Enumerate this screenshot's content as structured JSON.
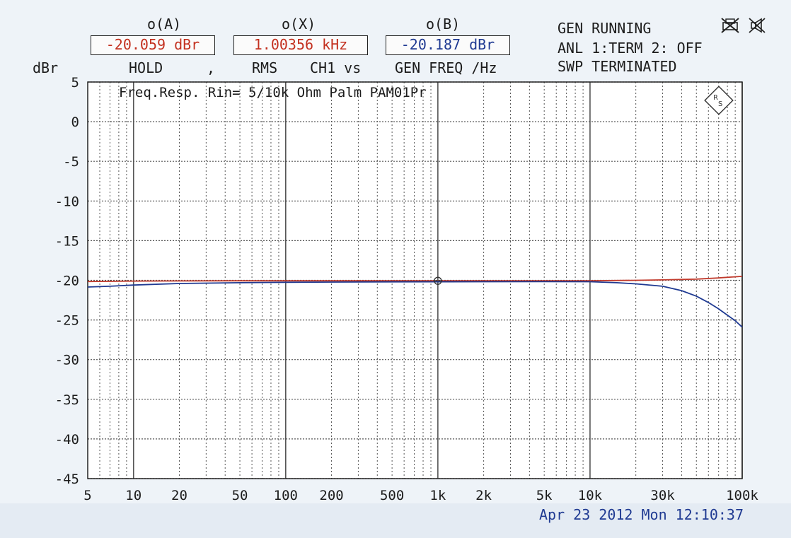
{
  "header": {
    "col_a_title": "o(A)",
    "col_x_title": "o(X)",
    "col_b_title": "o(B)",
    "readout_a": "-20.059 dBr",
    "readout_x": "1.00356 kHz",
    "readout_b": "-20.187 dBr",
    "y_unit": "dBr",
    "mode_hold": "HOLD",
    "comma": ",",
    "mode_rms": "RMS",
    "mode_ch": "CH1 vs",
    "mode_gen": "GEN FREQ /Hz"
  },
  "status": {
    "line1": "GEN RUNNING",
    "line2": "ANL 1:TERM 2: OFF",
    "line3": "SWP TERMINATED",
    "icon_left": "printer-crossed-icon",
    "icon_right": "speaker-crossed-icon"
  },
  "logo_icon": "rohde-schwarz-logo-icon",
  "timestamp": "Apr 23 2012 Mon 12:10:37",
  "colors": {
    "trace_a": "#c0392b",
    "trace_b": "#1f3a92",
    "grid": "#555555"
  },
  "chart_data": {
    "type": "line",
    "title": "Freq.Resp. Rin= 5/10k Ohm Palm PAM01Pr",
    "xlabel": "",
    "ylabel": "dBr",
    "x_scale": "log",
    "xlim": [
      5,
      100000
    ],
    "ylim": [
      -45,
      5
    ],
    "grid": true,
    "y_ticks": [
      5,
      0,
      -5,
      -10,
      -15,
      -20,
      -25,
      -30,
      -35,
      -40,
      -45
    ],
    "y_tick_labels": [
      "5",
      "0",
      "-5",
      "-10",
      "-15",
      "-20",
      "-25",
      "-30",
      "-35",
      "-40",
      "-45"
    ],
    "x_ticks": [
      5,
      10,
      20,
      50,
      100,
      200,
      500,
      1000,
      2000,
      5000,
      10000,
      30000,
      100000
    ],
    "x_tick_labels": [
      "5",
      "10",
      "20",
      "50",
      "100",
      "200",
      "500",
      "1k",
      "2k",
      "5k",
      "10k",
      "30k",
      "100k"
    ],
    "cursor": {
      "x": 1000,
      "y": -20.06
    },
    "series": [
      {
        "color": "#c0392b",
        "x": [
          5,
          10,
          20,
          50,
          100,
          200,
          500,
          1000,
          2000,
          5000,
          10000,
          20000,
          30000,
          50000,
          70000,
          100000
        ],
        "y": [
          -20.15,
          -20.1,
          -20.08,
          -20.06,
          -20.06,
          -20.06,
          -20.06,
          -20.06,
          -20.06,
          -20.06,
          -20.05,
          -20.0,
          -19.95,
          -19.85,
          -19.7,
          -19.5
        ]
      },
      {
        "color": "#1f3a92",
        "x": [
          5,
          7,
          10,
          20,
          50,
          100,
          200,
          500,
          1000,
          2000,
          5000,
          10000,
          15000,
          20000,
          30000,
          40000,
          50000,
          60000,
          70000,
          80000,
          90000,
          100000
        ],
        "y": [
          -20.85,
          -20.75,
          -20.6,
          -20.4,
          -20.3,
          -20.25,
          -20.22,
          -20.2,
          -20.19,
          -20.18,
          -20.17,
          -20.18,
          -20.3,
          -20.45,
          -20.75,
          -21.3,
          -22.0,
          -22.8,
          -23.6,
          -24.4,
          -25.1,
          -25.9
        ]
      }
    ]
  }
}
